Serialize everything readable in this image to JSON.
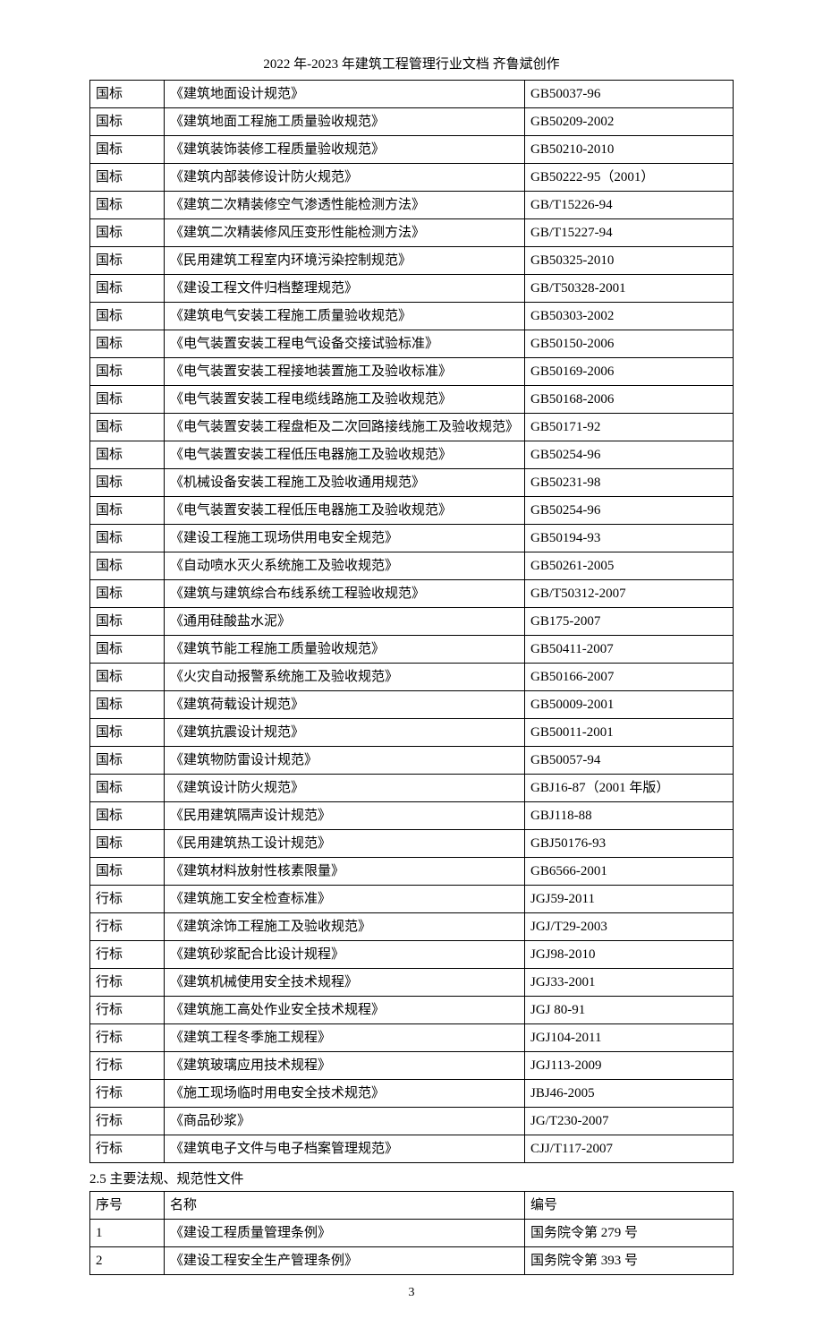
{
  "header": "2022 年-2023 年建筑工程管理行业文档  齐鲁斌创作",
  "table1_rows": [
    [
      "国标",
      "《建筑地面设计规范》",
      "GB50037-96"
    ],
    [
      "国标",
      "《建筑地面工程施工质量验收规范》",
      "GB50209-2002"
    ],
    [
      "国标",
      "《建筑装饰装修工程质量验收规范》",
      "GB50210-2010"
    ],
    [
      "国标",
      "《建筑内部装修设计防火规范》",
      "GB50222-95（2001）"
    ],
    [
      "国标",
      "《建筑二次精装修空气渗透性能检测方法》",
      "GB/T15226-94"
    ],
    [
      "国标",
      "《建筑二次精装修风压变形性能检测方法》",
      "GB/T15227-94"
    ],
    [
      "国标",
      "《民用建筑工程室内环境污染控制规范》",
      "GB50325-2010"
    ],
    [
      "国标",
      "《建设工程文件归档整理规范》",
      "GB/T50328-2001"
    ],
    [
      "国标",
      "《建筑电气安装工程施工质量验收规范》",
      "GB50303-2002"
    ],
    [
      "国标",
      "《电气装置安装工程电气设备交接试验标准》",
      "GB50150-2006"
    ],
    [
      "国标",
      "《电气装置安装工程接地装置施工及验收标准》",
      "GB50169-2006"
    ],
    [
      "国标",
      "《电气装置安装工程电缆线路施工及验收规范》",
      "GB50168-2006"
    ],
    [
      "国标",
      "《电气装置安装工程盘柜及二次回路接线施工及验收规范》",
      "GB50171-92"
    ],
    [
      "国标",
      "《电气装置安装工程低压电器施工及验收规范》",
      "GB50254-96"
    ],
    [
      "国标",
      "《机械设备安装工程施工及验收通用规范》",
      "GB50231-98"
    ],
    [
      "国标",
      "《电气装置安装工程低压电器施工及验收规范》",
      "GB50254-96"
    ],
    [
      "国标",
      "《建设工程施工现场供用电安全规范》",
      "GB50194-93"
    ],
    [
      "国标",
      "《自动喷水灭火系统施工及验收规范》",
      "GB50261-2005"
    ],
    [
      "国标",
      "《建筑与建筑综合布线系统工程验收规范》",
      "GB/T50312-2007"
    ],
    [
      "国标",
      "《通用硅酸盐水泥》",
      "GB175-2007"
    ],
    [
      "国标",
      "《建筑节能工程施工质量验收规范》",
      "GB50411-2007"
    ],
    [
      "国标",
      "《火灾自动报警系统施工及验收规范》",
      "GB50166-2007"
    ],
    [
      "国标",
      "《建筑荷载设计规范》",
      "GB50009-2001"
    ],
    [
      "国标",
      "《建筑抗震设计规范》",
      "GB50011-2001"
    ],
    [
      "国标",
      "《建筑物防雷设计规范》",
      "GB50057-94"
    ],
    [
      "国标",
      "《建筑设计防火规范》",
      "GBJ16-87（2001 年版）"
    ],
    [
      "国标",
      "《民用建筑隔声设计规范》",
      "GBJ118-88"
    ],
    [
      "国标",
      "《民用建筑热工设计规范》",
      "GBJ50176-93"
    ],
    [
      "国标",
      "《建筑材料放射性核素限量》",
      "GB6566-2001"
    ],
    [
      "行标",
      "《建筑施工安全检查标准》",
      "JGJ59-2011"
    ],
    [
      "行标",
      "《建筑涂饰工程施工及验收规范》",
      "JGJ/T29-2003"
    ],
    [
      "行标",
      "《建筑砂浆配合比设计规程》",
      "JGJ98-2010"
    ],
    [
      "行标",
      "《建筑机械使用安全技术规程》",
      "JGJ33-2001"
    ],
    [
      "行标",
      "《建筑施工高处作业安全技术规程》",
      "JGJ 80-91"
    ],
    [
      "行标",
      "《建筑工程冬季施工规程》",
      "JGJ104-2011"
    ],
    [
      "行标",
      "《建筑玻璃应用技术规程》",
      "JGJ113-2009"
    ],
    [
      "行标",
      "《施工现场临时用电安全技术规范》",
      "JBJ46-2005"
    ],
    [
      "行标",
      "《商品砂浆》",
      "JG/T230-2007"
    ],
    [
      "行标",
      "《建筑电子文件与电子档案管理规范》",
      "CJJ/T117-2007"
    ]
  ],
  "section_title": "2.5 主要法规、规范性文件",
  "table2_header": [
    "序号",
    "名称",
    "编号"
  ],
  "table2_rows": [
    [
      "1",
      "《建设工程质量管理条例》",
      "国务院令第 279 号"
    ],
    [
      "2",
      "《建设工程安全生产管理条例》",
      "国务院令第 393 号"
    ]
  ],
  "page_number": "3"
}
